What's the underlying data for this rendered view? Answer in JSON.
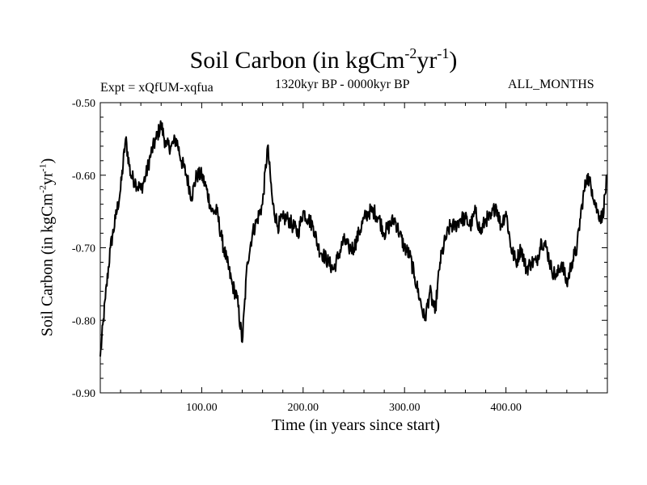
{
  "chart_data": {
    "type": "line",
    "title": "Soil Carbon (in kgCm",
    "title_unit_exp1": "-2",
    "title_unit_mid": "yr",
    "title_unit_exp2": "-1",
    "title_close": ")",
    "expt": "Expt = xQfUM-xqfua",
    "period": "1320kyr BP - 0000kyr BP",
    "months": "ALL_MONTHS",
    "xlabel": "Time (in years since start)",
    "ylabel": "Soil Carbon (in kgCm",
    "xlim": [
      0,
      500
    ],
    "ylim": [
      -0.9,
      -0.5
    ],
    "x_ticks": [
      100,
      200,
      300,
      400
    ],
    "x_tick_labels": [
      "100.00",
      "200.00",
      "300.00",
      "400.00"
    ],
    "y_ticks": [
      -0.9,
      -0.8,
      -0.7,
      -0.6,
      -0.5
    ],
    "y_tick_labels": [
      "-0.90",
      "-0.80",
      "-0.70",
      "-0.60",
      "-0.50"
    ],
    "series": [
      {
        "name": "Soil Carbon",
        "x": [
          0,
          5,
          10,
          15,
          20,
          25,
          30,
          35,
          40,
          45,
          50,
          55,
          60,
          65,
          70,
          75,
          80,
          85,
          90,
          95,
          100,
          105,
          110,
          115,
          120,
          125,
          130,
          135,
          140,
          145,
          150,
          155,
          160,
          165,
          170,
          175,
          180,
          185,
          190,
          195,
          200,
          205,
          210,
          215,
          220,
          225,
          230,
          235,
          240,
          245,
          250,
          255,
          260,
          265,
          270,
          275,
          280,
          285,
          290,
          295,
          300,
          305,
          310,
          315,
          320,
          325,
          330,
          335,
          340,
          345,
          350,
          355,
          360,
          365,
          370,
          375,
          380,
          385,
          390,
          395,
          400,
          405,
          410,
          415,
          420,
          425,
          430,
          435,
          440,
          445,
          450,
          455,
          460,
          465,
          470,
          475,
          480,
          485,
          490,
          495,
          500
        ],
        "values": [
          -0.85,
          -0.77,
          -0.7,
          -0.66,
          -0.62,
          -0.55,
          -0.6,
          -0.61,
          -0.62,
          -0.6,
          -0.57,
          -0.55,
          -0.53,
          -0.56,
          -0.56,
          -0.55,
          -0.58,
          -0.6,
          -0.63,
          -0.6,
          -0.6,
          -0.62,
          -0.65,
          -0.65,
          -0.69,
          -0.72,
          -0.75,
          -0.77,
          -0.83,
          -0.72,
          -0.68,
          -0.66,
          -0.64,
          -0.56,
          -0.64,
          -0.67,
          -0.66,
          -0.66,
          -0.67,
          -0.68,
          -0.65,
          -0.66,
          -0.67,
          -0.7,
          -0.71,
          -0.72,
          -0.73,
          -0.71,
          -0.69,
          -0.7,
          -0.7,
          -0.68,
          -0.66,
          -0.65,
          -0.65,
          -0.66,
          -0.68,
          -0.67,
          -0.66,
          -0.68,
          -0.7,
          -0.71,
          -0.74,
          -0.77,
          -0.8,
          -0.76,
          -0.79,
          -0.72,
          -0.69,
          -0.67,
          -0.67,
          -0.66,
          -0.66,
          -0.67,
          -0.65,
          -0.68,
          -0.66,
          -0.66,
          -0.64,
          -0.67,
          -0.65,
          -0.7,
          -0.72,
          -0.7,
          -0.73,
          -0.72,
          -0.72,
          -0.69,
          -0.7,
          -0.73,
          -0.74,
          -0.72,
          -0.75,
          -0.72,
          -0.7,
          -0.64,
          -0.6,
          -0.62,
          -0.65,
          -0.66,
          -0.6
        ]
      }
    ]
  }
}
